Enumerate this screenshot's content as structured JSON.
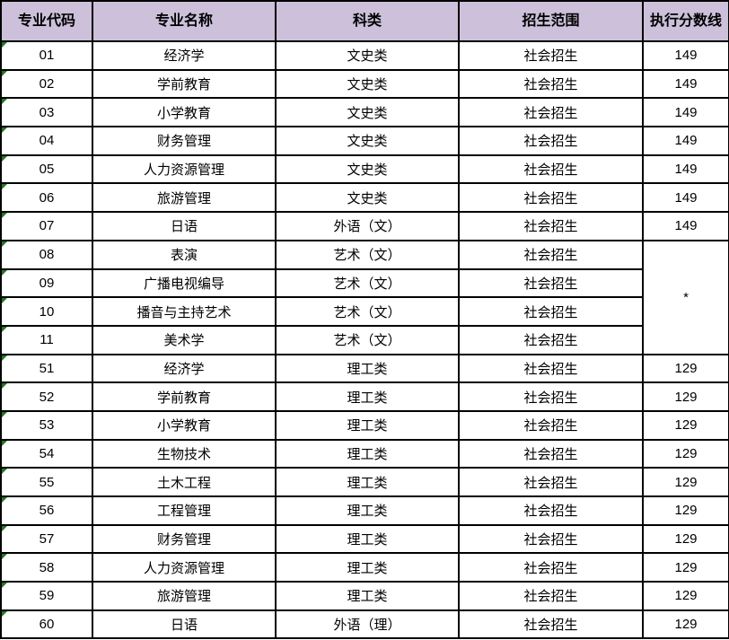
{
  "headers": [
    "专业代码",
    "专业名称",
    "科类",
    "招生范围",
    "执行分数线"
  ],
  "header_color": "#ccc0da",
  "rows": [
    {
      "code": "01",
      "name": "经济学",
      "category": "文史类",
      "scope": "社会招生",
      "score": "149"
    },
    {
      "code": "02",
      "name": "学前教育",
      "category": "文史类",
      "scope": "社会招生",
      "score": "149"
    },
    {
      "code": "03",
      "name": "小学教育",
      "category": "文史类",
      "scope": "社会招生",
      "score": "149"
    },
    {
      "code": "04",
      "name": "财务管理",
      "category": "文史类",
      "scope": "社会招生",
      "score": "149"
    },
    {
      "code": "05",
      "name": "人力资源管理",
      "category": "文史类",
      "scope": "社会招生",
      "score": "149"
    },
    {
      "code": "06",
      "name": "旅游管理",
      "category": "文史类",
      "scope": "社会招生",
      "score": "149"
    },
    {
      "code": "07",
      "name": "日语",
      "category": "外语（文）",
      "scope": "社会招生",
      "score": "149"
    },
    {
      "code": "08",
      "name": "表演",
      "category": "艺术（文）",
      "scope": "社会招生",
      "score": "*"
    },
    {
      "code": "09",
      "name": "广播电视编导",
      "category": "艺术（文）",
      "scope": "社会招生"
    },
    {
      "code": "10",
      "name": "播音与主持艺术",
      "category": "艺术（文）",
      "scope": "社会招生"
    },
    {
      "code": "11",
      "name": "美术学",
      "category": "艺术（文）",
      "scope": "社会招生"
    },
    {
      "code": "51",
      "name": "经济学",
      "category": "理工类",
      "scope": "社会招生",
      "score": "129"
    },
    {
      "code": "52",
      "name": "学前教育",
      "category": "理工类",
      "scope": "社会招生",
      "score": "129"
    },
    {
      "code": "53",
      "name": "小学教育",
      "category": "理工类",
      "scope": "社会招生",
      "score": "129"
    },
    {
      "code": "54",
      "name": "生物技术",
      "category": "理工类",
      "scope": "社会招生",
      "score": "129"
    },
    {
      "code": "55",
      "name": "土木工程",
      "category": "理工类",
      "scope": "社会招生",
      "score": "129"
    },
    {
      "code": "56",
      "name": "工程管理",
      "category": "理工类",
      "scope": "社会招生",
      "score": "129"
    },
    {
      "code": "57",
      "name": "财务管理",
      "category": "理工类",
      "scope": "社会招生",
      "score": "129"
    },
    {
      "code": "58",
      "name": "人力资源管理",
      "category": "理工类",
      "scope": "社会招生",
      "score": "129"
    },
    {
      "code": "59",
      "name": "旅游管理",
      "category": "理工类",
      "scope": "社会招生",
      "score": "129"
    },
    {
      "code": "60",
      "name": "日语",
      "category": "外语（理）",
      "scope": "社会招生",
      "score": "129"
    }
  ]
}
